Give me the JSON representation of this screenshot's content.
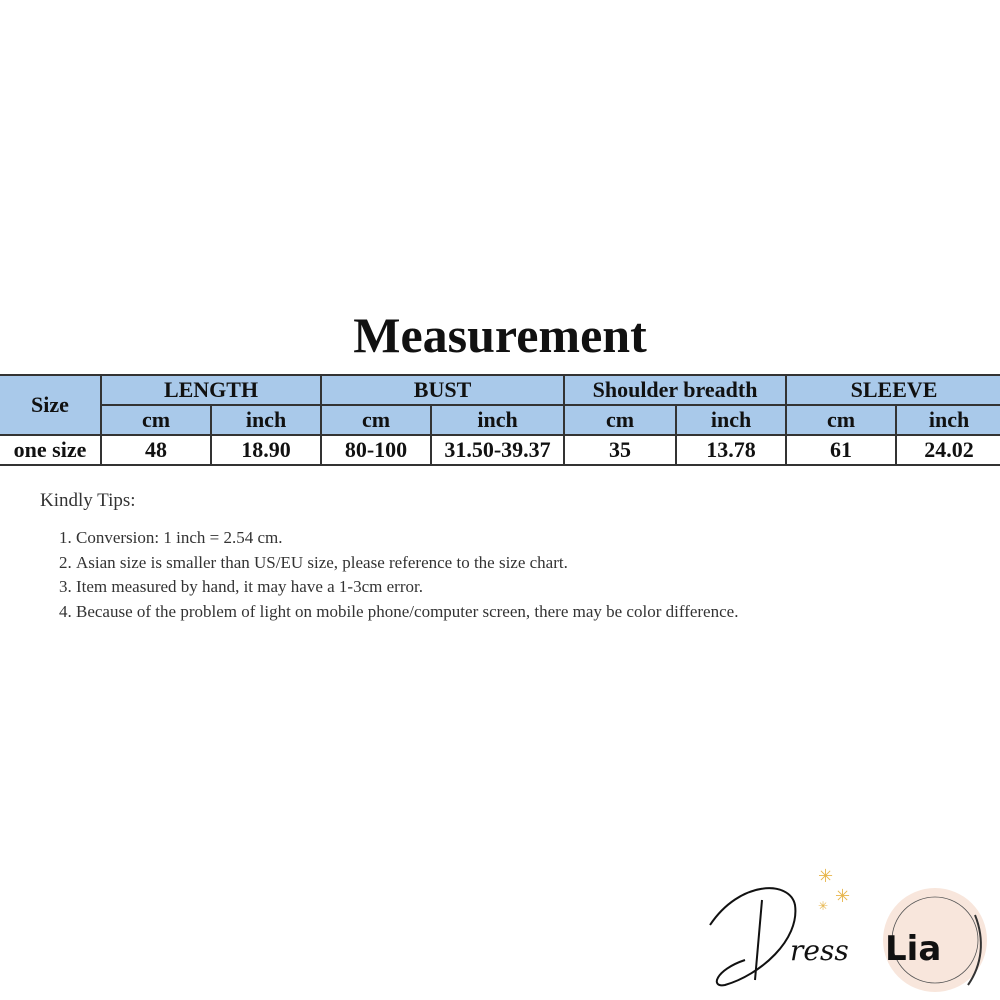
{
  "title": "Measurement",
  "table": {
    "size_header": "Size",
    "groups": [
      "LENGTH",
      "BUST",
      "Shoulder breadth",
      "SLEEVE"
    ],
    "units": [
      "cm",
      "inch",
      "cm",
      "inch",
      "cm",
      "inch",
      "cm",
      "inch"
    ],
    "rows": [
      {
        "size": "one size",
        "values": [
          "48",
          "18.90",
          "80-100",
          "31.50-39.37",
          "35",
          "13.78",
          "61",
          "24.02"
        ]
      }
    ]
  },
  "tips": {
    "heading": "Kindly Tips:",
    "items": [
      "Conversion: 1 inch = 2.54 cm.",
      "Asian size is smaller than US/EU size, please reference to the size chart.",
      "Item measured by hand, it may have a 1-3cm error.",
      "Because of the problem of light on mobile phone/computer screen, there may be color difference."
    ]
  },
  "logo": {
    "text": "DressLia"
  },
  "colors": {
    "header_bg": "#a9c9ea"
  }
}
